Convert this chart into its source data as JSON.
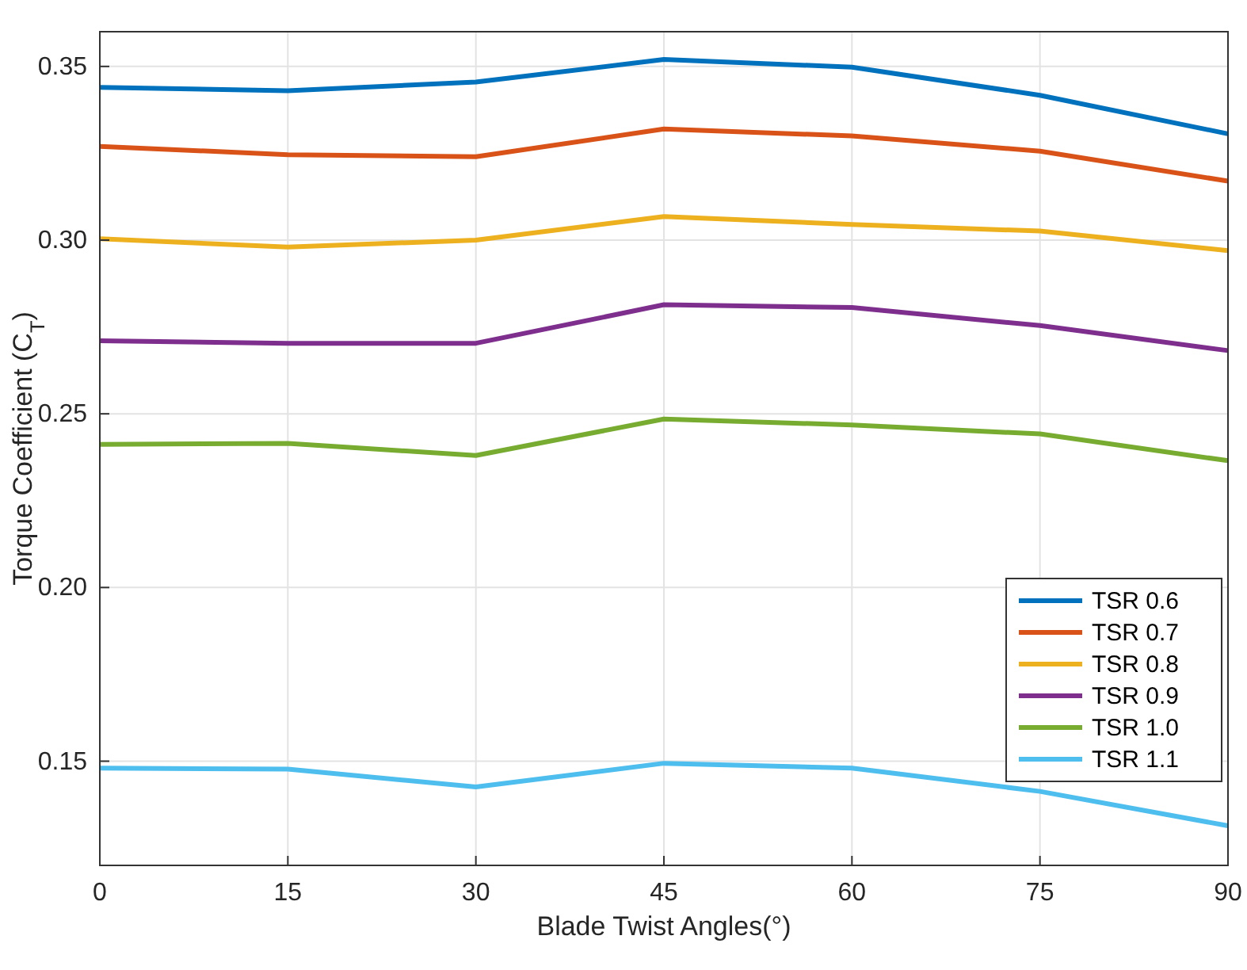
{
  "chart_data": {
    "type": "line",
    "xlabel": "Blade Twist Angles(°)",
    "ylabel": "Torque Coefficient (C$_{T}$)",
    "x": [
      0,
      15,
      30,
      45,
      60,
      75,
      90
    ],
    "xlim": [
      0,
      90
    ],
    "xticks": [
      0,
      15,
      30,
      45,
      60,
      75,
      90
    ],
    "ylim": [
      0.12,
      0.36
    ],
    "yticks": [
      {
        "value": 0.15,
        "label": "0.15"
      },
      {
        "value": 0.2,
        "label": "0.20"
      },
      {
        "value": 0.25,
        "label": "0.25"
      },
      {
        "value": 0.3,
        "label": "0.30"
      },
      {
        "value": 0.35,
        "label": "0.35"
      }
    ],
    "grid": true,
    "legend": "right",
    "line_style": "solid",
    "marker": "none",
    "series": [
      {
        "name": "TSR 0.6",
        "color": "#0072bd",
        "values": [
          0.344,
          0.343,
          0.3455,
          0.352,
          0.3498,
          0.3417,
          0.3306
        ]
      },
      {
        "name": "TSR 0.7",
        "color": "#d95319",
        "values": [
          0.327,
          0.3246,
          0.324,
          0.332,
          0.33,
          0.3256,
          0.317
        ]
      },
      {
        "name": "TSR 0.8",
        "color": "#edb120",
        "values": [
          0.3004,
          0.298,
          0.3,
          0.3068,
          0.3045,
          0.3026,
          0.297
        ]
      },
      {
        "name": "TSR 0.9",
        "color": "#7e2f8e",
        "values": [
          0.271,
          0.2703,
          0.2703,
          0.2814,
          0.2806,
          0.2754,
          0.2682
        ]
      },
      {
        "name": "TSR 1.0",
        "color": "#77ac30",
        "values": [
          0.2412,
          0.2415,
          0.238,
          0.2485,
          0.2468,
          0.2442,
          0.2365
        ]
      },
      {
        "name": "TSR 1.1",
        "color": "#4dbeee",
        "values": [
          0.148,
          0.1477,
          0.1426,
          0.1494,
          0.148,
          0.1413,
          0.1314
        ]
      }
    ]
  }
}
